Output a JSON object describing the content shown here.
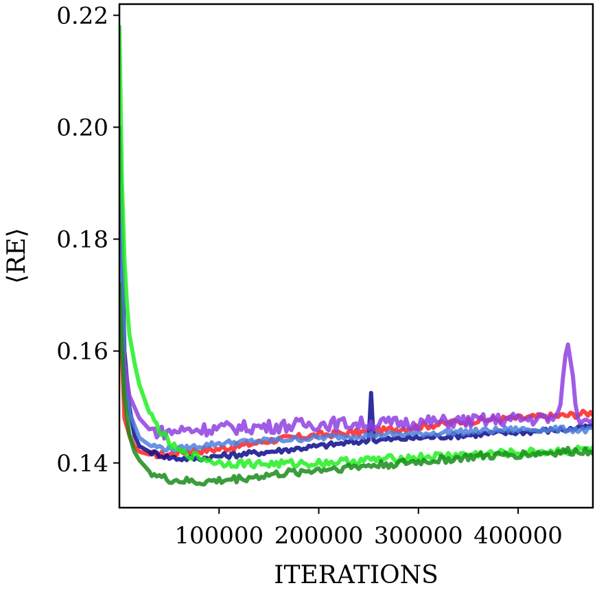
{
  "chart_data": {
    "type": "line",
    "xlabel": "ITERATIONS",
    "ylabel": "⟨RE⟩",
    "xlim": [
      0,
      475000
    ],
    "ylim": [
      0.132,
      0.222
    ],
    "x_ticks": [
      100000,
      200000,
      300000,
      400000
    ],
    "y_ticks": [
      0.14,
      0.16,
      0.18,
      0.2,
      0.22
    ],
    "y_tick_labels": [
      "0.14",
      "0.16",
      "0.18",
      "0.20",
      "0.22"
    ],
    "grid": false,
    "series": [
      {
        "color": "#ff2020",
        "marker": "square",
        "x": [
          0,
          5000,
          10000,
          15000,
          20000,
          30000,
          40000,
          50000,
          60000,
          80000,
          100000,
          120000,
          150000,
          200000,
          250000,
          300000,
          350000,
          400000,
          450000,
          475000
        ],
        "values": [
          0.172,
          0.148,
          0.145,
          0.143,
          0.142,
          0.1415,
          0.1415,
          0.1415,
          0.142,
          0.1422,
          0.1425,
          0.143,
          0.144,
          0.145,
          0.1455,
          0.1465,
          0.1475,
          0.148,
          0.1485,
          0.149
        ]
      },
      {
        "color": "#0a0a8c",
        "marker": "triangle-down",
        "x": [
          0,
          5000,
          10000,
          15000,
          20000,
          30000,
          40000,
          50000,
          60000,
          80000,
          100000,
          150000,
          200000,
          250000,
          252000,
          254000,
          300000,
          350000,
          400000,
          450000,
          475000
        ],
        "values": [
          0.2,
          0.16,
          0.15,
          0.145,
          0.143,
          0.142,
          0.1415,
          0.141,
          0.1408,
          0.1408,
          0.1412,
          0.142,
          0.143,
          0.144,
          0.156,
          0.144,
          0.1445,
          0.145,
          0.1455,
          0.146,
          0.1465
        ]
      },
      {
        "color": "#4f7fdc",
        "marker": "circle",
        "x": [
          0,
          5000,
          10000,
          20000,
          30000,
          40000,
          50000,
          60000,
          80000,
          100000,
          150000,
          200000,
          250000,
          300000,
          350000,
          400000,
          450000,
          475000
        ],
        "values": [
          0.19,
          0.158,
          0.149,
          0.1445,
          0.1432,
          0.1428,
          0.1425,
          0.1425,
          0.143,
          0.1435,
          0.144,
          0.1445,
          0.145,
          0.1452,
          0.1456,
          0.146,
          0.146,
          0.1458
        ]
      },
      {
        "color": "#8f3fe0",
        "marker": "diamond",
        "x": [
          0,
          5000,
          10000,
          20000,
          30000,
          40000,
          50000,
          60000,
          80000,
          100000,
          150000,
          200000,
          250000,
          300000,
          350000,
          400000,
          440000,
          450000,
          460000,
          475000
        ],
        "values": [
          0.165,
          0.158,
          0.152,
          0.148,
          0.146,
          0.1455,
          0.1455,
          0.1458,
          0.146,
          0.1462,
          0.1465,
          0.147,
          0.147,
          0.1472,
          0.1475,
          0.1478,
          0.148,
          0.162,
          0.148,
          0.1482
        ]
      },
      {
        "color": "#22ee22",
        "marker": "plus",
        "x": [
          0,
          3000,
          6000,
          10000,
          15000,
          20000,
          30000,
          40000,
          50000,
          60000,
          80000,
          100000,
          150000,
          200000,
          250000,
          300000,
          350000,
          400000,
          450000,
          475000
        ],
        "values": [
          0.218,
          0.185,
          0.172,
          0.163,
          0.158,
          0.154,
          0.149,
          0.146,
          0.1435,
          0.142,
          0.141,
          0.14,
          0.1398,
          0.14,
          0.1405,
          0.141,
          0.1415,
          0.1418,
          0.1422,
          0.1425
        ]
      },
      {
        "color": "#1a8c1a",
        "marker": "x",
        "x": [
          0,
          5000,
          10000,
          15000,
          20000,
          30000,
          40000,
          50000,
          60000,
          80000,
          100000,
          120000,
          150000,
          200000,
          250000,
          300000,
          350000,
          400000,
          450000,
          475000
        ],
        "values": [
          0.172,
          0.152,
          0.145,
          0.142,
          0.1405,
          0.1385,
          0.1375,
          0.137,
          0.1368,
          0.1365,
          0.1368,
          0.1372,
          0.1378,
          0.1388,
          0.1395,
          0.1402,
          0.141,
          0.1415,
          0.142,
          0.1422
        ]
      }
    ]
  }
}
